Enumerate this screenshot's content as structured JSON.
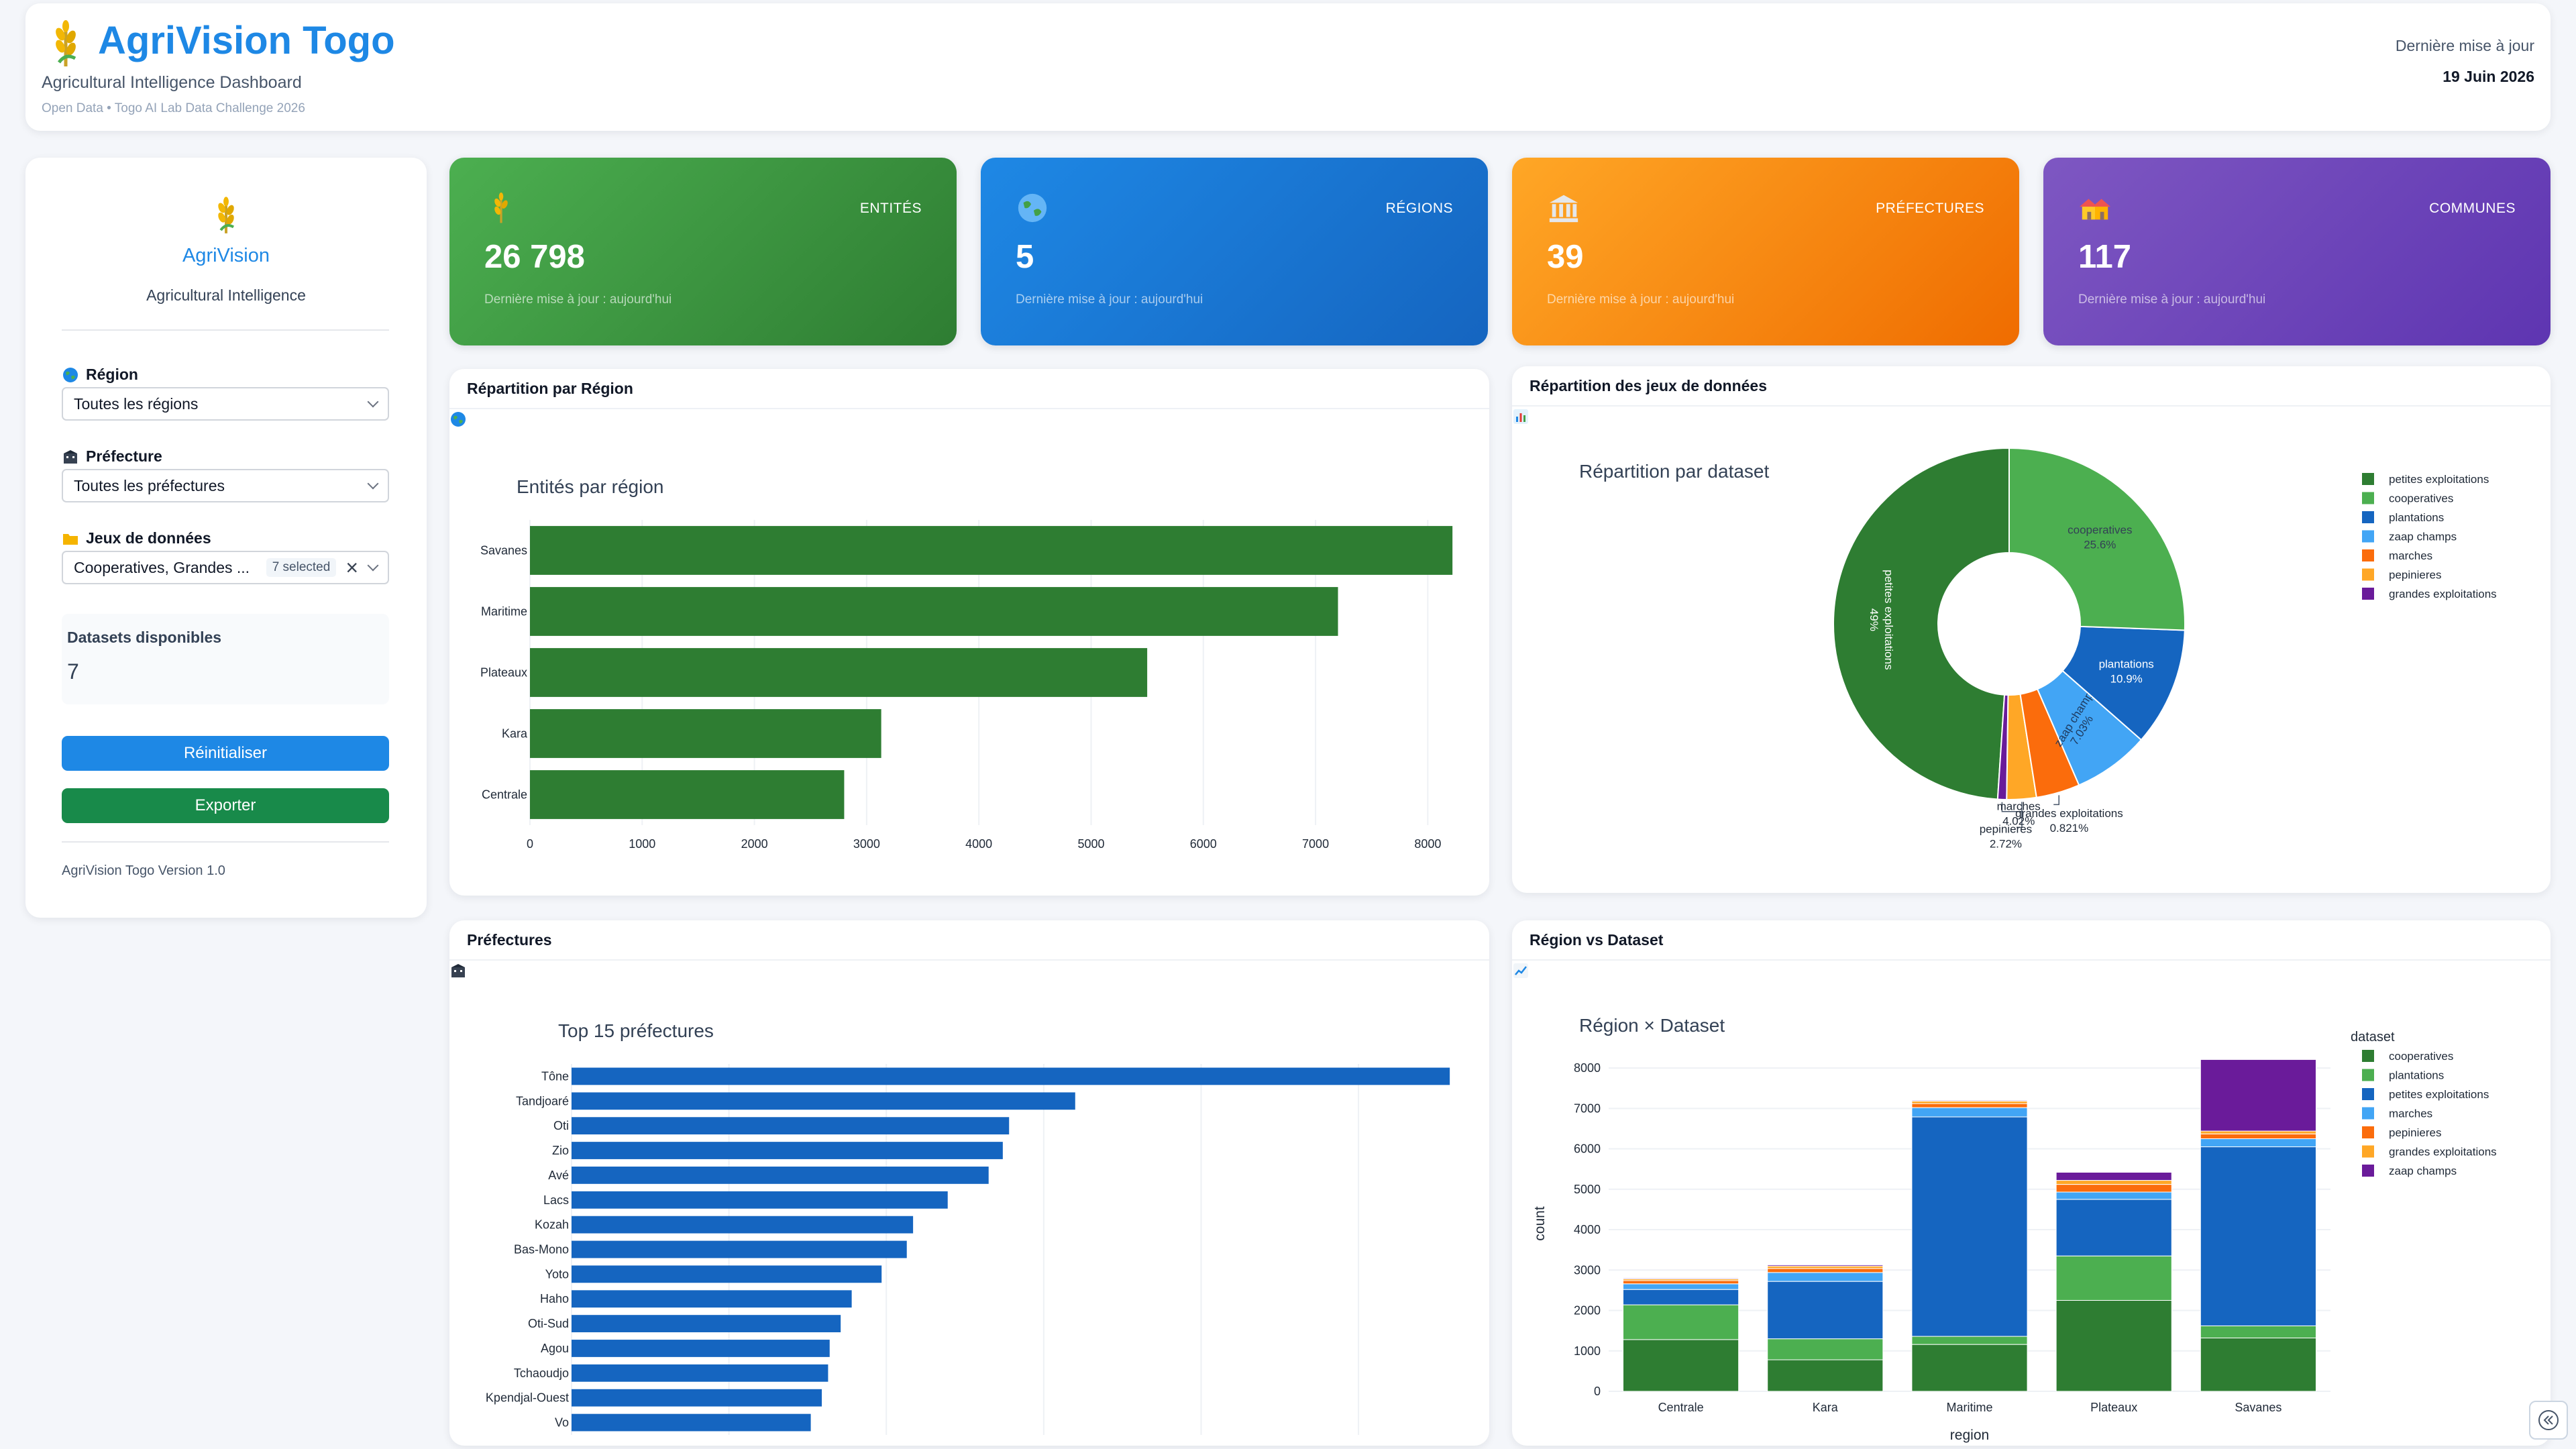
{
  "header": {
    "title": "AgriVision Togo",
    "subtitle": "Agricultural Intelligence Dashboard",
    "source": "Open Data • Togo AI Lab Data Challenge 2026",
    "update_label": "Dernière mise à jour",
    "update_date": "19 Juin 2026"
  },
  "sidebar": {
    "brand": "AgriVision",
    "tagline": "Agricultural Intelligence",
    "region_label": "Région",
    "region_value": "Toutes les régions",
    "prefecture_label": "Préfecture",
    "prefecture_value": "Toutes les préfectures",
    "datasets_label": "Jeux de données",
    "datasets_value": "Cooperatives, Grandes ...",
    "datasets_selected": "7 selected",
    "available_label": "Datasets disponibles",
    "available_count": "7",
    "reset_label": "Réinitialiser",
    "export_label": "Exporter",
    "version": "AgriVision Togo Version 1.0"
  },
  "kpis": [
    {
      "label": "ENTITÉS",
      "value": "26 798",
      "sub": "Dernière mise à jour : aujourd'hui",
      "icon": "wheat-icon"
    },
    {
      "label": "RÉGIONS",
      "value": "5",
      "sub": "Dernière mise à jour : aujourd'hui",
      "icon": "globe-icon"
    },
    {
      "label": "PRÉFECTURES",
      "value": "39",
      "sub": "Dernière mise à jour : aujourd'hui",
      "icon": "bank-icon"
    },
    {
      "label": "COMMUNES",
      "value": "117",
      "sub": "Dernière mise à jour : aujourd'hui",
      "icon": "houses-icon"
    }
  ],
  "panels": {
    "region": "Répartition par Région",
    "dataset": "Répartition des jeux de données",
    "pref": "Préfectures",
    "cross": "Région vs Dataset"
  },
  "colors": {
    "dark_green": "#2e7d32",
    "green": "#4caf50",
    "blue": "#1565c0",
    "light_blue": "#42a5f5",
    "orange": "#fb6c0c",
    "amber": "#ffa726",
    "purple": "#6a1b9a",
    "bar_blue": "#1565c0"
  },
  "chart_data": [
    {
      "type": "bar",
      "orientation": "horizontal",
      "title": "Entités par région",
      "categories": [
        "Savanes",
        "Maritime",
        "Plateaux",
        "Kara",
        "Centrale"
      ],
      "values": [
        8220,
        7200,
        5500,
        3130,
        2800
      ],
      "xlim": [
        0,
        8500
      ],
      "xticks": [
        0,
        1000,
        2000,
        3000,
        4000,
        5000,
        6000,
        7000,
        8000
      ],
      "grid": true
    },
    {
      "type": "pie",
      "hole": true,
      "title": "Répartition par dataset",
      "labels": [
        "petites exploitations",
        "grandes exploitations",
        "pepinieres",
        "marches",
        "zaap champs",
        "plantations",
        "cooperatives"
      ],
      "slice_labels": [
        "petites exploitations\n49%",
        "grandes exploitations\n0.821%",
        "pepinieres\n2.72%",
        "marches\n4.02%",
        "zaap champs\n7.03%",
        "plantations\n10.9%",
        "cooperatives\n25.6%"
      ],
      "values": [
        49.0,
        0.821,
        2.72,
        4.02,
        7.03,
        10.9,
        25.6
      ],
      "legend": [
        "petites exploitations",
        "cooperatives",
        "plantations",
        "zaap champs",
        "marches",
        "pepinieres",
        "grandes exploitations"
      ],
      "legend_position": "top-right"
    },
    {
      "type": "bar",
      "orientation": "horizontal",
      "title": "Top 15 préfectures",
      "categories": [
        "Tône",
        "Tandjoaré",
        "Oti",
        "Zio",
        "Avé",
        "Lacs",
        "Kozah",
        "Bas-Mono",
        "Yoto",
        "Haho",
        "Oti-Sud",
        "Agou",
        "Tchaoudjo",
        "Kpendjal-Ouest",
        "Vo"
      ],
      "values": [
        2790,
        1600,
        1390,
        1370,
        1325,
        1195,
        1085,
        1065,
        985,
        890,
        855,
        820,
        815,
        795,
        760
      ],
      "xlim": [
        0,
        2860
      ],
      "xticks": [
        0,
        500,
        1000,
        1500,
        2000,
        2500
      ],
      "grid": true
    },
    {
      "type": "bar",
      "stacked": true,
      "title": "Région × Dataset",
      "xlabel": "region",
      "ylabel": "count",
      "categories": [
        "Centrale",
        "Kara",
        "Maritime",
        "Plateaux",
        "Savanes"
      ],
      "ylim": [
        0,
        8300
      ],
      "yticks": [
        0,
        1000,
        2000,
        3000,
        4000,
        5000,
        6000,
        7000,
        8000
      ],
      "legend_title": "dataset",
      "series": [
        {
          "name": "grandes exploitations",
          "values": [
            1280,
            780,
            1160,
            2250,
            1320
          ]
        },
        {
          "name": "cooperatives",
          "values": [
            860,
            520,
            200,
            1100,
            300
          ]
        },
        {
          "name": "petites exploitations",
          "values": [
            380,
            1420,
            5430,
            1400,
            4430
          ]
        },
        {
          "name": "zaap champs",
          "values": [
            140,
            220,
            230,
            180,
            200
          ]
        },
        {
          "name": "marches",
          "values": [
            80,
            100,
            100,
            190,
            120
          ]
        },
        {
          "name": "pepinieres",
          "values": [
            40,
            60,
            60,
            100,
            70
          ]
        },
        {
          "name": "plantations",
          "values": [
            20,
            30,
            20,
            200,
            1770
          ]
        }
      ],
      "legend": [
        {
          "name": "cooperatives",
          "color": "#2e7d32"
        },
        {
          "name": "plantations",
          "color": "#4caf50"
        },
        {
          "name": "petites exploitations",
          "color": "#1565c0"
        },
        {
          "name": "marches",
          "color": "#42a5f5"
        },
        {
          "name": "pepinieres",
          "color": "#fb6c0c"
        },
        {
          "name": "grandes exploitations",
          "color": "#ffa726"
        },
        {
          "name": "zaap champs",
          "color": "#6a1b9a"
        }
      ],
      "stack_colors": [
        "#2e7d32",
        "#4caf50",
        "#1565c0",
        "#42a5f5",
        "#fb6c0c",
        "#ffa726",
        "#6a1b9a"
      ]
    }
  ]
}
